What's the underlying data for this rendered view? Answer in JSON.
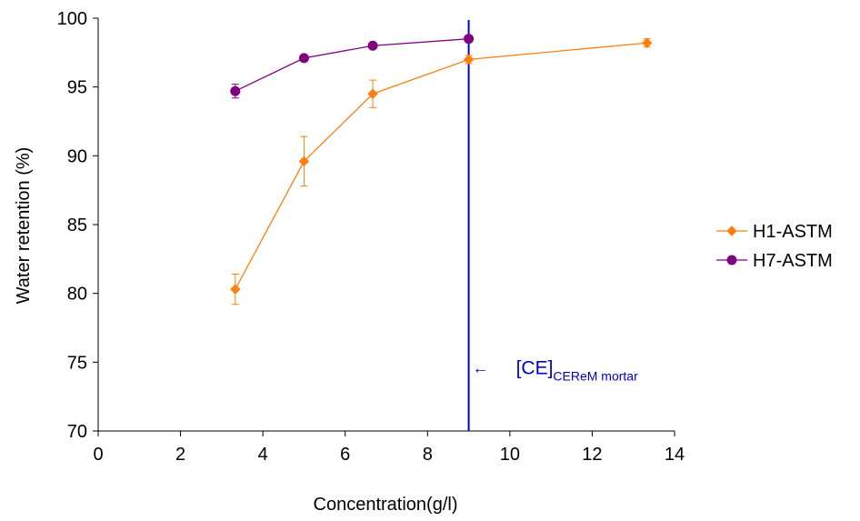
{
  "chart_data": {
    "type": "line",
    "title": "",
    "xlabel": "Concentration(g/l)",
    "ylabel": "Water retention (%)",
    "xlim": [
      0,
      14
    ],
    "ylim": [
      70,
      100
    ],
    "xticks": [
      0,
      2,
      4,
      6,
      8,
      10,
      12,
      14
    ],
    "yticks": [
      70,
      75,
      80,
      85,
      90,
      95,
      100
    ],
    "grid": false,
    "legend_position": "right",
    "series": [
      {
        "name": "H1-ASTM",
        "color": "#ff7f0e",
        "marker": "diamond",
        "x": [
          3.33,
          5.0,
          6.67,
          9.0,
          13.33
        ],
        "y": [
          80.3,
          89.6,
          94.5,
          97.0,
          98.2
        ],
        "err": [
          1.1,
          1.8,
          1.0,
          0.3,
          0.3
        ]
      },
      {
        "name": "H7-ASTM",
        "color": "#800080",
        "marker": "circle",
        "x": [
          3.33,
          5.0,
          6.67,
          9.0
        ],
        "y": [
          94.7,
          97.1,
          98.0,
          98.5
        ],
        "err": [
          0.5,
          0.2,
          0.2,
          0.2
        ]
      }
    ],
    "vline": {
      "x": 9.0,
      "color": "#0000cc"
    },
    "annotation": {
      "text_main": "[CE]",
      "text_sub": "CEReM mortar",
      "arrow_symbol": "←",
      "x": 9.0,
      "y": 74.6
    }
  }
}
